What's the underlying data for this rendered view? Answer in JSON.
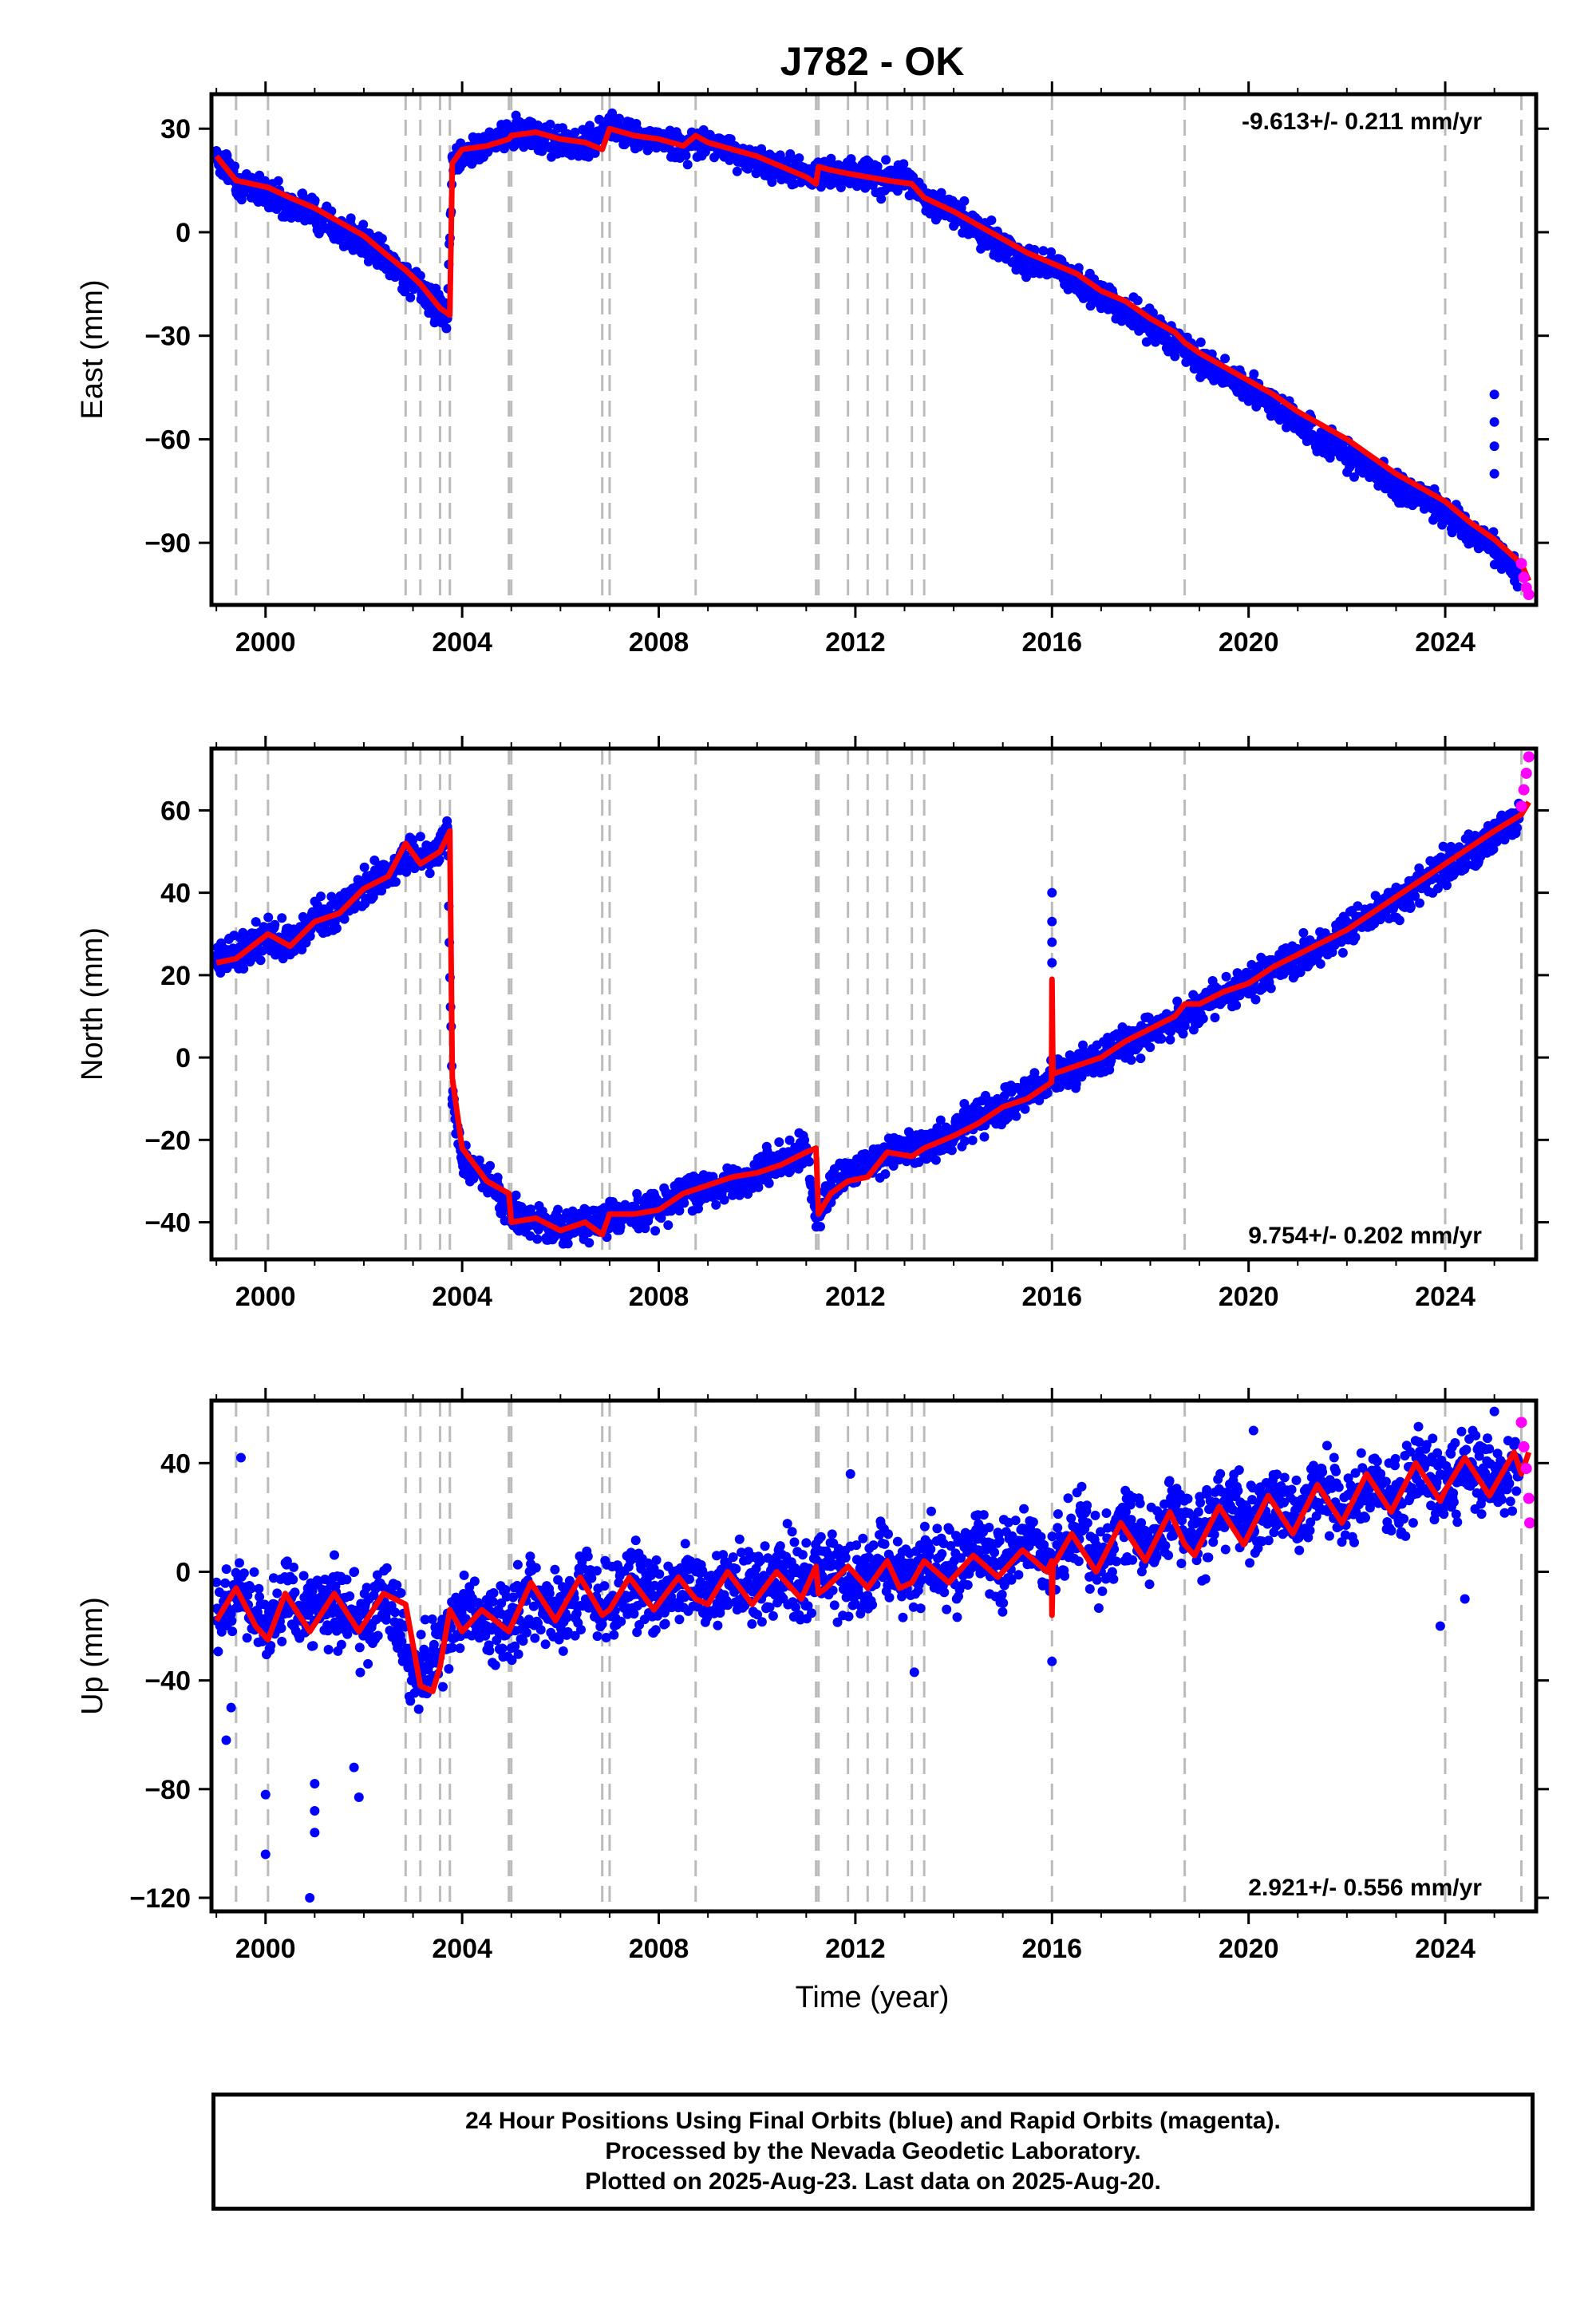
{
  "title": "J782 - OK",
  "xlabel": "Time (year)",
  "footer": {
    "line1": "24 Hour Positions Using Final Orbits (blue) and Rapid Orbits (magenta).",
    "line2": "Processed by the Nevada Geodetic Laboratory.",
    "line3": "Plotted on 2025-Aug-23. Last data on 2025-Aug-20."
  },
  "colors": {
    "final_orbits": "#0000ff",
    "rapid_orbits": "#ff00ff",
    "model": "#ff0000",
    "event_lines": "#bbbbbb"
  },
  "chart_data": [
    {
      "type": "scatter",
      "ylabel": "East (mm)",
      "rate": "-9.613+/- 0.211 mm/yr",
      "xlim": [
        1998.9,
        2025.85
      ],
      "ylim": [
        -108,
        40
      ],
      "xticks": [
        "2000",
        "2004",
        "2008",
        "2012",
        "2016",
        "2020",
        "2024"
      ],
      "yticks": [
        "-90",
        "-60",
        "-30",
        "0",
        "30"
      ],
      "event_lines": [
        1999.4,
        2000.05,
        2002.85,
        2003.15,
        2003.55,
        2003.75,
        2004.95,
        2005.0,
        2006.85,
        2007.0,
        2008.75,
        2011.2,
        2011.25,
        2011.85,
        2012.25,
        2012.65,
        2013.15,
        2013.4,
        2016.0,
        2018.7,
        2024.0,
        2025.55
      ],
      "series": [
        {
          "name": "Final Orbits",
          "color": "#0000ff",
          "x": [
            1999.0,
            1999.5,
            2000.0,
            2000.5,
            2001.0,
            2001.5,
            2002.0,
            2002.5,
            2003.0,
            2003.5,
            2003.7,
            2003.8,
            2004.5,
            2005.0,
            2005.5,
            2006.0,
            2006.5,
            2007.0,
            2007.5,
            2008.0,
            2008.5,
            2009.0,
            2009.5,
            2010.0,
            2010.5,
            2011.0,
            2011.5,
            2012.0,
            2012.5,
            2013.0,
            2013.5,
            2014.0,
            2014.5,
            2015.0,
            2015.5,
            2016.0,
            2016.5,
            2017.0,
            2017.5,
            2018.0,
            2018.5,
            2019.0,
            2019.5,
            2020.0,
            2020.5,
            2021.0,
            2021.5,
            2022.0,
            2022.5,
            2023.0,
            2023.5,
            2024.0,
            2024.5,
            2025.0,
            2025.5
          ],
          "y": [
            22,
            14,
            12,
            8,
            6,
            1,
            -3,
            -9,
            -14,
            -22,
            -25,
            22,
            25,
            29,
            28,
            26,
            24,
            31,
            28,
            27,
            25,
            27,
            23,
            21,
            18,
            17,
            16,
            18,
            15,
            16,
            9,
            6,
            1,
            -4,
            -9,
            -9,
            -14,
            -18,
            -23,
            -27,
            -32,
            -36,
            -41,
            -45,
            -50,
            -55,
            -60,
            -64,
            -69,
            -73,
            -77,
            -81,
            -87,
            -92,
            -99
          ]
        },
        {
          "name": "Rapid Orbits",
          "color": "#ff00ff",
          "x": [
            2025.55,
            2025.6,
            2025.65,
            2025.7
          ],
          "y": [
            -96,
            -100,
            -103,
            -105
          ]
        }
      ],
      "outliers": [
        [
          2025.0,
          -47
        ],
        [
          2025.0,
          -55
        ],
        [
          2025.0,
          -62
        ],
        [
          2025.0,
          -70
        ]
      ],
      "model": {
        "x": [
          1999.0,
          1999.4,
          2000.05,
          2000.5,
          2001.0,
          2001.5,
          2002.0,
          2002.5,
          2002.85,
          2003.15,
          2003.55,
          2003.75,
          2003.8,
          2004.0,
          2004.5,
          2004.95,
          2005.0,
          2005.5,
          2006.0,
          2006.5,
          2006.85,
          2007.0,
          2007.5,
          2008.0,
          2008.5,
          2008.75,
          2009.0,
          2009.5,
          2010.0,
          2010.5,
          2011.0,
          2011.2,
          2011.25,
          2011.5,
          2011.85,
          2012.25,
          2012.65,
          2013.15,
          2013.4,
          2013.7,
          2014.0,
          2014.5,
          2015.0,
          2015.5,
          2016.0,
          2016.5,
          2017.0,
          2017.5,
          2018.0,
          2018.5,
          2018.7,
          2019.0,
          2019.5,
          2020.0,
          2020.5,
          2021.0,
          2021.5,
          2022.0,
          2022.5,
          2023.0,
          2023.5,
          2024.0,
          2024.5,
          2025.0,
          2025.55,
          2025.7
        ],
        "y": [
          22,
          15,
          13,
          10,
          7,
          3,
          -1,
          -7,
          -11,
          -15,
          -22,
          -24,
          20,
          24,
          25,
          27,
          28,
          29,
          27,
          26,
          24,
          30,
          28,
          27,
          25,
          28,
          26,
          24,
          22,
          19,
          16,
          14,
          19,
          18,
          17,
          16,
          15,
          14,
          10,
          8,
          6,
          2,
          -2,
          -6,
          -9,
          -12,
          -17,
          -20,
          -25,
          -29,
          -32,
          -35,
          -39,
          -43,
          -47,
          -52,
          -56,
          -60,
          -65,
          -70,
          -74,
          -78,
          -84,
          -89,
          -96,
          -101
        ]
      }
    },
    {
      "type": "scatter",
      "ylabel": "North (mm)",
      "rate": "9.754+/- 0.202 mm/yr",
      "xlim": [
        1998.9,
        2025.85
      ],
      "ylim": [
        -49,
        75
      ],
      "xticks": [
        "2000",
        "2004",
        "2008",
        "2012",
        "2016",
        "2020",
        "2024"
      ],
      "yticks": [
        "-40",
        "-20",
        "0",
        "20",
        "40",
        "60"
      ],
      "event_lines": [
        1999.4,
        2000.05,
        2002.85,
        2003.15,
        2003.55,
        2003.75,
        2004.95,
        2005.0,
        2006.85,
        2007.0,
        2008.75,
        2011.2,
        2011.25,
        2011.85,
        2012.25,
        2012.65,
        2013.15,
        2013.4,
        2016.0,
        2018.7,
        2024.0,
        2025.55
      ],
      "series": [
        {
          "name": "Final Orbits",
          "color": "#0000ff",
          "x": [
            1999.0,
            1999.5,
            2000.0,
            2000.5,
            2001.0,
            2001.5,
            2002.0,
            2002.5,
            2003.0,
            2003.5,
            2003.7,
            2003.8,
            2004.0,
            2004.5,
            2005.0,
            2005.5,
            2006.0,
            2006.5,
            2007.0,
            2007.5,
            2008.0,
            2008.5,
            2009.0,
            2009.5,
            2010.0,
            2010.5,
            2011.0,
            2011.2,
            2011.5,
            2012.0,
            2012.5,
            2013.0,
            2013.5,
            2014.0,
            2014.5,
            2015.0,
            2015.5,
            2016.0,
            2016.5,
            2017.0,
            2017.5,
            2018.0,
            2018.5,
            2019.0,
            2019.5,
            2020.0,
            2020.5,
            2021.0,
            2021.5,
            2022.0,
            2022.5,
            2023.0,
            2023.5,
            2024.0,
            2024.5,
            2025.0,
            2025.5
          ],
          "y": [
            24,
            26,
            30,
            28,
            33,
            36,
            41,
            45,
            50,
            48,
            56,
            -10,
            -25,
            -30,
            -38,
            -40,
            -41,
            -40,
            -39,
            -38,
            -36,
            -34,
            -32,
            -30,
            -28,
            -25,
            -22,
            -39,
            -31,
            -28,
            -24,
            -22,
            -21,
            -18,
            -15,
            -12,
            -8,
            -5,
            -2,
            0,
            3,
            6,
            9,
            12,
            15,
            18,
            21,
            24,
            27,
            31,
            35,
            38,
            42,
            46,
            50,
            54,
            58
          ]
        },
        {
          "name": "Rapid Orbits",
          "color": "#ff00ff",
          "x": [
            2025.55,
            2025.6,
            2025.65,
            2025.7
          ],
          "y": [
            61,
            65,
            69,
            73
          ]
        }
      ],
      "outliers": [
        [
          2016.0,
          40
        ],
        [
          2016.0,
          33
        ],
        [
          2016.0,
          28
        ],
        [
          2016.0,
          23
        ]
      ],
      "model": {
        "x": [
          1999.0,
          1999.4,
          2000.05,
          2000.5,
          2001.0,
          2001.5,
          2002.0,
          2002.5,
          2002.85,
          2003.15,
          2003.55,
          2003.75,
          2003.8,
          2004.0,
          2004.5,
          2004.95,
          2005.0,
          2005.5,
          2006.0,
          2006.5,
          2006.85,
          2007.0,
          2007.5,
          2008.0,
          2008.5,
          2008.75,
          2009.0,
          2009.5,
          2010.0,
          2010.5,
          2011.0,
          2011.2,
          2011.25,
          2011.5,
          2011.85,
          2012.25,
          2012.65,
          2013.15,
          2013.4,
          2014.0,
          2014.5,
          2015.0,
          2015.5,
          2015.99,
          2016.0,
          2016.02,
          2016.5,
          2017.0,
          2017.5,
          2018.0,
          2018.5,
          2018.7,
          2019.0,
          2019.5,
          2020.0,
          2020.5,
          2021.0,
          2021.5,
          2022.0,
          2022.5,
          2023.0,
          2023.5,
          2024.0,
          2024.5,
          2025.0,
          2025.55,
          2025.7
        ],
        "y": [
          23,
          24,
          30,
          27,
          33,
          35,
          41,
          44,
          52,
          47,
          50,
          55,
          -5,
          -22,
          -30,
          -33,
          -40,
          -39,
          -42,
          -40,
          -43,
          -38,
          -38,
          -37,
          -33,
          -32,
          -31,
          -29,
          -28,
          -26,
          -23,
          -22,
          -38,
          -33,
          -30,
          -29,
          -23,
          -24,
          -22,
          -19,
          -16,
          -12,
          -10,
          -6,
          19,
          -4,
          -2,
          0,
          4,
          7,
          10,
          13,
          13,
          16,
          18,
          22,
          25,
          28,
          31,
          35,
          39,
          43,
          47,
          51,
          55,
          59,
          62
        ]
      }
    },
    {
      "type": "scatter",
      "ylabel": "Up (mm)",
      "rate": "2.921+/- 0.556 mm/yr",
      "xlim": [
        1998.9,
        2025.85
      ],
      "ylim": [
        -125,
        63
      ],
      "xticks": [
        "2000",
        "2004",
        "2008",
        "2012",
        "2016",
        "2020",
        "2024"
      ],
      "yticks": [
        "-120",
        "-80",
        "-40",
        "0",
        "40"
      ],
      "event_lines": [
        1999.4,
        2000.05,
        2002.85,
        2003.15,
        2003.55,
        2003.75,
        2004.95,
        2005.0,
        2006.85,
        2007.0,
        2008.75,
        2011.2,
        2011.25,
        2011.85,
        2012.25,
        2012.65,
        2013.15,
        2013.4,
        2016.0,
        2018.7,
        2024.0,
        2025.55
      ],
      "series": [
        {
          "name": "Final Orbits",
          "color": "#0000ff",
          "x": [
            1999.0,
            1999.5,
            2000.0,
            2000.5,
            2001.0,
            2001.5,
            2002.0,
            2002.5,
            2003.0,
            2003.5,
            2004.0,
            2004.5,
            2005.0,
            2005.5,
            2006.0,
            2006.5,
            2007.0,
            2007.5,
            2008.0,
            2008.5,
            2009.0,
            2009.5,
            2010.0,
            2010.5,
            2011.0,
            2011.5,
            2012.0,
            2012.5,
            2013.0,
            2013.5,
            2014.0,
            2014.5,
            2015.0,
            2015.5,
            2016.0,
            2016.5,
            2017.0,
            2017.5,
            2018.0,
            2018.5,
            2019.0,
            2019.5,
            2020.0,
            2020.5,
            2021.0,
            2021.5,
            2022.0,
            2022.5,
            2023.0,
            2023.5,
            2024.0,
            2024.5,
            2025.0,
            2025.5
          ],
          "y": [
            -18,
            -8,
            -22,
            -10,
            -18,
            -10,
            -20,
            -8,
            -40,
            -30,
            -12,
            -20,
            -18,
            -8,
            -18,
            -5,
            -14,
            -4,
            -12,
            -4,
            -10,
            -2,
            -8,
            0,
            -6,
            2,
            -4,
            4,
            -2,
            6,
            0,
            8,
            2,
            10,
            0,
            14,
            6,
            18,
            8,
            22,
            12,
            26,
            16,
            28,
            18,
            32,
            22,
            34,
            24,
            38,
            28,
            40,
            30,
            38
          ]
        },
        {
          "name": "Rapid Orbits",
          "color": "#ff00ff",
          "x": [
            2025.55,
            2025.6,
            2025.65,
            2025.7,
            2025.72
          ],
          "y": [
            55,
            46,
            38,
            27,
            18
          ]
        }
      ],
      "outliers": [
        [
          1999.2,
          -62
        ],
        [
          1999.3,
          -50
        ],
        [
          2000.0,
          -82
        ],
        [
          2000.0,
          -104
        ],
        [
          2000.9,
          -120
        ],
        [
          2001.0,
          -78
        ],
        [
          2001.0,
          -88
        ],
        [
          2001.0,
          -96
        ],
        [
          2001.8,
          -72
        ],
        [
          2001.9,
          -83
        ],
        [
          1999.5,
          42
        ],
        [
          2011.9,
          36
        ],
        [
          2013.2,
          -37
        ],
        [
          2016.0,
          -33
        ],
        [
          2023.9,
          -20
        ],
        [
          2024.4,
          -10
        ],
        [
          2025.0,
          59
        ],
        [
          2020.1,
          52
        ]
      ],
      "model": {
        "x": [
          1999.0,
          1999.4,
          1999.8,
          2000.05,
          2000.4,
          2000.9,
          2001.4,
          2001.9,
          2002.4,
          2002.85,
          2003.15,
          2003.4,
          2003.55,
          2003.75,
          2004.0,
          2004.4,
          2004.95,
          2005.0,
          2005.4,
          2005.9,
          2006.4,
          2006.85,
          2007.0,
          2007.4,
          2007.9,
          2008.4,
          2008.75,
          2009.0,
          2009.4,
          2009.9,
          2010.4,
          2010.9,
          2011.2,
          2011.25,
          2011.4,
          2011.85,
          2012.25,
          2012.65,
          2012.9,
          2013.15,
          2013.4,
          2013.9,
          2014.4,
          2014.9,
          2015.4,
          2015.9,
          2015.99,
          2016.0,
          2016.02,
          2016.4,
          2016.9,
          2017.4,
          2017.9,
          2018.4,
          2018.7,
          2018.9,
          2019.4,
          2019.9,
          2020.4,
          2020.9,
          2021.4,
          2021.9,
          2022.4,
          2022.9,
          2023.4,
          2023.9,
          2024.0,
          2024.4,
          2024.9,
          2025.4,
          2025.55,
          2025.7
        ],
        "y": [
          -18,
          -6,
          -20,
          -25,
          -8,
          -22,
          -8,
          -22,
          -8,
          -12,
          -42,
          -44,
          -35,
          -14,
          -22,
          -14,
          -22,
          -20,
          -4,
          -18,
          -2,
          -16,
          -14,
          -2,
          -14,
          -2,
          -10,
          -12,
          0,
          -12,
          0,
          -10,
          2,
          -8,
          -6,
          2,
          -6,
          4,
          -6,
          -4,
          4,
          -4,
          6,
          -2,
          8,
          0,
          4,
          -16,
          2,
          14,
          0,
          18,
          4,
          22,
          10,
          6,
          24,
          10,
          28,
          14,
          32,
          18,
          36,
          22,
          40,
          26,
          30,
          42,
          28,
          44,
          36,
          44
        ]
      }
    }
  ]
}
